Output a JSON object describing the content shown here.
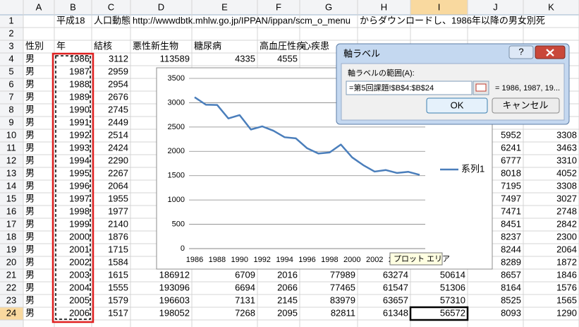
{
  "sheet": {
    "columns": [
      "A",
      "B",
      "C",
      "D",
      "E",
      "F",
      "G",
      "H",
      "I",
      "J",
      "K"
    ],
    "row_numbers": [
      1,
      2,
      3,
      4,
      5,
      6,
      7,
      8,
      9,
      10,
      11,
      12,
      13,
      14,
      15,
      16,
      17,
      18,
      19,
      20,
      21,
      22,
      23,
      24
    ],
    "rows": [
      [
        null,
        "平成18",
        "人口動態",
        "http://wwwdbtk.mhlw.go.jp/IPPAN/ippan/scm_o_menu",
        null,
        null,
        null,
        "からダウンロードし、1986年以降の男女別死",
        null,
        null,
        null
      ],
      [
        null,
        null,
        null,
        null,
        null,
        null,
        null,
        null,
        null,
        null,
        null
      ],
      [
        "性別",
        "年",
        "結核",
        "悪性新生物",
        "糖尿病",
        "高血圧性疾",
        "心疾患",
        null,
        null,
        null,
        null
      ],
      [
        "男",
        1986,
        3112,
        113589,
        4335,
        4555,
        null,
        null,
        null,
        null,
        null
      ],
      [
        "男",
        1987,
        2959,
        null,
        null,
        null,
        null,
        null,
        null,
        null,
        null
      ],
      [
        "男",
        1988,
        2954,
        null,
        null,
        null,
        null,
        null,
        null,
        null,
        null
      ],
      [
        "男",
        1989,
        2676,
        null,
        null,
        null,
        null,
        null,
        null,
        null,
        null
      ],
      [
        "男",
        1990,
        2745,
        null,
        null,
        null,
        null,
        null,
        null,
        null,
        null
      ],
      [
        "男",
        1991,
        2449,
        null,
        null,
        null,
        null,
        null,
        null,
        null,
        null
      ],
      [
        "男",
        1992,
        2514,
        null,
        null,
        null,
        null,
        null,
        null,
        5952,
        3308
      ],
      [
        "男",
        1993,
        2424,
        null,
        null,
        null,
        null,
        null,
        null,
        6241,
        3463
      ],
      [
        "男",
        1994,
        2290,
        null,
        null,
        null,
        null,
        null,
        null,
        6777,
        3310
      ],
      [
        "男",
        1995,
        2267,
        null,
        null,
        null,
        null,
        null,
        null,
        8018,
        4052
      ],
      [
        "男",
        1996,
        2064,
        null,
        null,
        null,
        null,
        null,
        null,
        7195,
        3308
      ],
      [
        "男",
        1997,
        1955,
        null,
        null,
        null,
        null,
        null,
        null,
        7497,
        3027
      ],
      [
        "男",
        1998,
        1977,
        null,
        null,
        null,
        null,
        null,
        null,
        7471,
        2748
      ],
      [
        "男",
        1999,
        2140,
        null,
        null,
        null,
        null,
        null,
        null,
        8451,
        2842
      ],
      [
        "男",
        2000,
        1876,
        null,
        null,
        null,
        null,
        null,
        null,
        8237,
        2300
      ],
      [
        "男",
        2001,
        1715,
        null,
        null,
        null,
        null,
        null,
        null,
        8244,
        2064
      ],
      [
        "男",
        2002,
        1584,
        null,
        null,
        null,
        null,
        null,
        null,
        8289,
        1872
      ],
      [
        "男",
        2003,
        1615,
        186912,
        6709,
        2016,
        77989,
        63274,
        50614,
        8657,
        1846
      ],
      [
        "男",
        2004,
        1555,
        193096,
        6694,
        2066,
        77465,
        61547,
        51306,
        8164,
        1576
      ],
      [
        "男",
        2005,
        1579,
        196603,
        7131,
        2145,
        83979,
        63657,
        57310,
        8525,
        1565
      ],
      [
        "男",
        2006,
        1517,
        198052,
        7268,
        2095,
        82811,
        61348,
        56572,
        8093,
        1290
      ]
    ]
  },
  "chart_data": {
    "type": "line",
    "categories": [
      1986,
      null,
      1988,
      null,
      1990,
      null,
      1992,
      null,
      1994,
      null,
      1996,
      null,
      1998,
      null,
      2000,
      null,
      2002,
      null,
      2004,
      null,
      2006
    ],
    "series": [
      {
        "name": "系列1",
        "color": "#4a7ebb",
        "values": [
          3112,
          2959,
          2954,
          2676,
          2745,
          2449,
          2514,
          2424,
          2290,
          2267,
          2064,
          1955,
          1977,
          2140,
          1876,
          1715,
          1584,
          1615,
          1555,
          1579,
          1517
        ]
      }
    ],
    "ylim": [
      0,
      3500
    ],
    "yticks": [
      0,
      500,
      1000,
      1500,
      2000,
      2500,
      3000,
      3500
    ],
    "grid": true,
    "legend": "right"
  },
  "tooltip": "プロット エリア",
  "dialog": {
    "title": "軸ラベル",
    "help": "?",
    "range_label": "軸ラベルの範囲(A):",
    "range_value": "=第5回課題!$B$4:$B$24",
    "preview": "= 1986, 1987, 19...",
    "ok": "OK",
    "cancel": "キャンセル"
  }
}
